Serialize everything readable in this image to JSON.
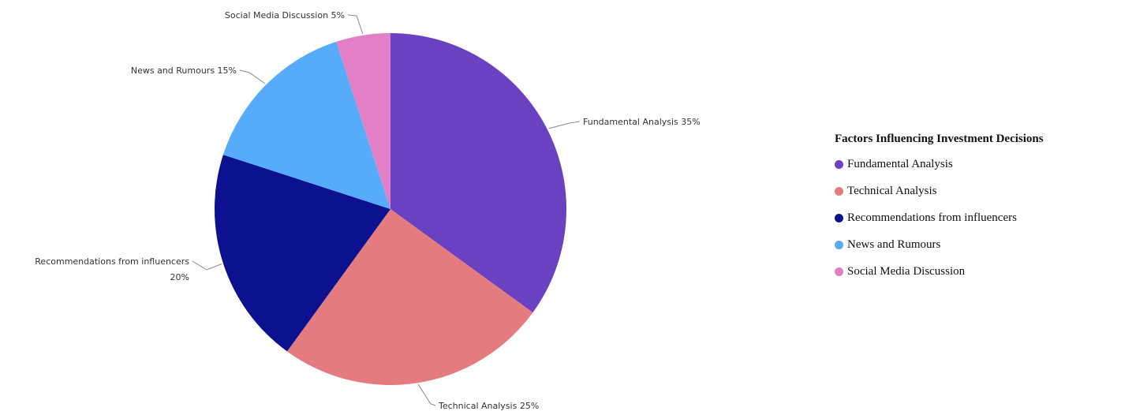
{
  "chart_data": {
    "type": "pie",
    "title": "",
    "categories": [
      "Fundamental Analysis",
      "Technical Analysis",
      "Recommendations from influencers",
      "News and Rumours",
      "Social Media Discussion"
    ],
    "values": [
      35,
      25,
      20,
      15,
      5
    ],
    "unit": "%",
    "colors": [
      "#6a41c0",
      "#e47b7f",
      "#0c128f",
      "#56abfb",
      "#e27fc6"
    ],
    "slice_labels": [
      "Fundamental Analysis 35%",
      "Technical Analysis 25%",
      "Recommendations from influencers",
      "News and Rumours 15%",
      "Social Media Discussion 5%"
    ],
    "slice_label_second_line": [
      "",
      "",
      "20%",
      "",
      ""
    ],
    "start_angle": "top (12 o'clock)",
    "direction": "clockwise",
    "legend": {
      "title": "Factors Influencing Investment Decisions",
      "placement": "right",
      "entries": [
        "Fundamental Analysis",
        "Technical Analysis",
        "Recommendations from influencers",
        "News and Rumours",
        "Social Media Discussion"
      ]
    }
  }
}
